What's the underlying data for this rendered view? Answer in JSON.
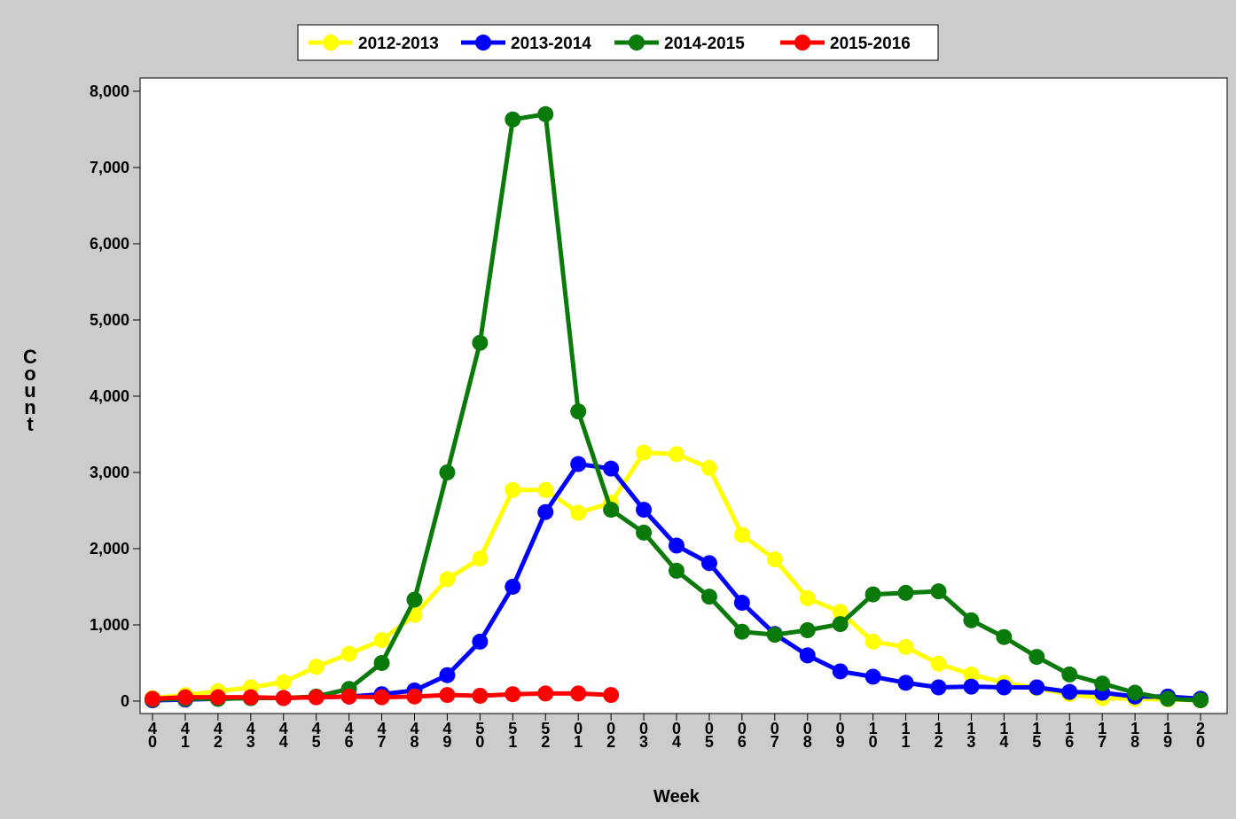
{
  "chart_data": {
    "type": "line",
    "x_label": "Week",
    "y_label": "Count",
    "categories": [
      "40",
      "41",
      "42",
      "43",
      "44",
      "45",
      "46",
      "47",
      "48",
      "49",
      "50",
      "51",
      "52",
      "01",
      "02",
      "03",
      "04",
      "05",
      "06",
      "07",
      "08",
      "09",
      "10",
      "11",
      "12",
      "13",
      "14",
      "15",
      "16",
      "17",
      "18",
      "19",
      "20"
    ],
    "ylim": [
      -163,
      8174
    ],
    "yticks": [
      0,
      {
        "value": 1000,
        "label": "1,000"
      },
      {
        "value": 2000,
        "label": "2,000"
      },
      {
        "value": 3000,
        "label": "3,000"
      },
      {
        "value": 4000,
        "label": "4,000"
      },
      {
        "value": 5000,
        "label": "5,000"
      },
      {
        "value": 6000,
        "label": "6,000"
      },
      {
        "value": 7000,
        "label": "7,000"
      },
      {
        "value": 8000,
        "label": "8,000"
      }
    ],
    "legend": "top",
    "series": [
      {
        "name": "2012-2013",
        "color": "#ffff00",
        "values": [
          40,
          80,
          130,
          180,
          250,
          450,
          620,
          800,
          1130,
          1600,
          1870,
          2770,
          2770,
          2470,
          2600,
          3260,
          3240,
          3060,
          2180,
          1860,
          1350,
          1170,
          780,
          710,
          490,
          350,
          240,
          170,
          90,
          40,
          30,
          20,
          10
        ]
      },
      {
        "name": "2013-2014",
        "color": "#0000ff",
        "values": [
          10,
          20,
          30,
          40,
          40,
          50,
          60,
          90,
          140,
          340,
          780,
          1500,
          2480,
          3110,
          3050,
          2510,
          2040,
          1810,
          1290,
          880,
          600,
          390,
          320,
          240,
          180,
          190,
          180,
          180,
          120,
          110,
          60,
          60,
          30
        ]
      },
      {
        "name": "2014-2015",
        "color": "#0a7a0a",
        "values": [
          20,
          30,
          30,
          40,
          40,
          60,
          160,
          500,
          1330,
          3000,
          4700,
          7630,
          7700,
          3800,
          2510,
          2210,
          1710,
          1370,
          910,
          870,
          930,
          1010,
          1400,
          1420,
          1440,
          1060,
          840,
          580,
          350,
          230,
          110,
          30,
          10
        ]
      },
      {
        "name": "2015-2016",
        "color": "#ff0000",
        "values": [
          30,
          50,
          50,
          50,
          40,
          50,
          60,
          50,
          60,
          80,
          70,
          90,
          100,
          100,
          80,
          null,
          null,
          null,
          null,
          null,
          null,
          null,
          null,
          null,
          null,
          null,
          null,
          null,
          null,
          null,
          null,
          null,
          null
        ]
      }
    ]
  }
}
